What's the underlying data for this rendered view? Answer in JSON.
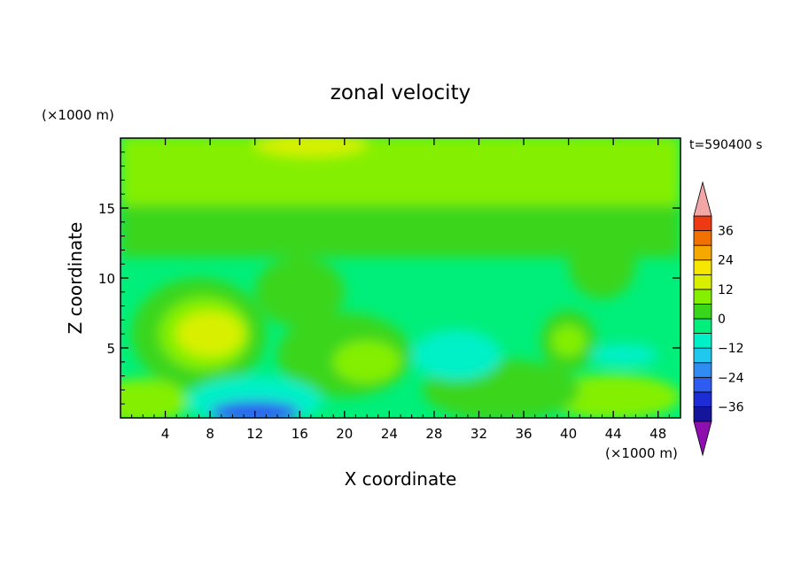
{
  "chart_data": {
    "type": "heatmap",
    "title": "zonal velocity",
    "xlabel": "X coordinate",
    "ylabel": "Z coordinate",
    "x_unit": "(×1000 m)",
    "y_unit": "(×1000 m)",
    "time_label": "t=590400 s",
    "xlim": [
      0,
      50
    ],
    "ylim": [
      0,
      20
    ],
    "x_ticks": [
      4,
      8,
      12,
      16,
      20,
      24,
      28,
      32,
      36,
      40,
      44,
      48
    ],
    "y_ticks": [
      5,
      10,
      15
    ],
    "x_tick_labels": [
      "4",
      "8",
      "12",
      "16",
      "20",
      "24",
      "28",
      "32",
      "36",
      "40",
      "44",
      "48"
    ],
    "y_tick_labels": [
      "5",
      "10",
      "15"
    ],
    "colorbar": {
      "levels": [
        -42,
        -36,
        -30,
        -24,
        -18,
        -12,
        -6,
        0,
        6,
        12,
        18,
        24,
        30,
        36,
        42
      ],
      "tick_values": [
        -36,
        -24,
        -12,
        0,
        12,
        24,
        36
      ],
      "tick_labels": [
        "−36",
        "−24",
        "−12",
        "0",
        "12",
        "24",
        "36"
      ],
      "colors": [
        "#5e0f96",
        "#15159b",
        "#1e2cd6",
        "#2e5cf0",
        "#2f8cf2",
        "#20c8f0",
        "#00f0c8",
        "#00ef7a",
        "#3ad61c",
        "#84f000",
        "#d8f000",
        "#f6e600",
        "#f6a800",
        "#f07000",
        "#ee3a12",
        "#d41a1a"
      ],
      "under_color": "#8e0eb0",
      "over_color": "#f2a6a6"
    },
    "features": [
      {
        "desc": "upper layer (z 15-20)",
        "value": 6
      },
      {
        "desc": "top maximum near x 14-20, z 19.5",
        "value": 12
      },
      {
        "desc": "mid layer (z 12-16)",
        "value": 0
      },
      {
        "desc": "lower background (z 0-11)",
        "value": -6
      },
      {
        "desc": "local maximum near x 8, z 6",
        "value": 12
      },
      {
        "desc": "local maximum near x 40, z 5.5",
        "value": 6
      },
      {
        "desc": "minimum near x 10-14, z 0.3",
        "value": -30
      },
      {
        "desc": "minimum near x 28-34, z 5",
        "value": -12
      }
    ]
  }
}
